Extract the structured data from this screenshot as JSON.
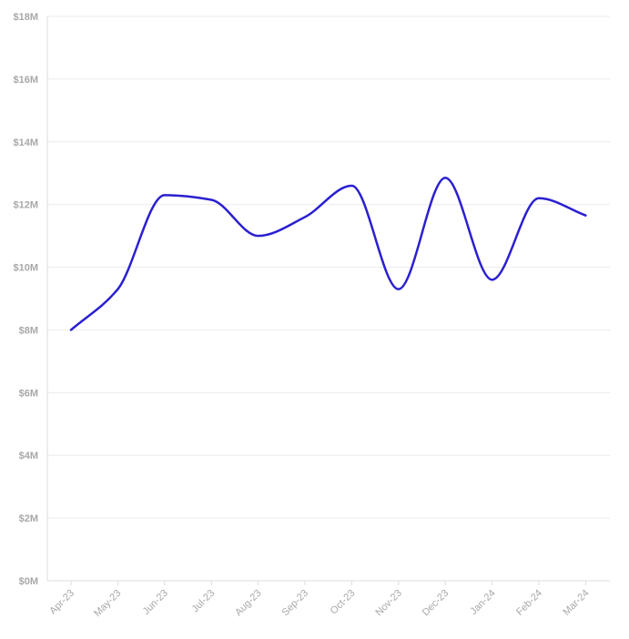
{
  "chart_data": {
    "type": "line",
    "title": "",
    "xlabel": "",
    "ylabel": "",
    "categories": [
      "Apr-23",
      "May-23",
      "Jun-23",
      "Jul-23",
      "Aug-23",
      "Sep-23",
      "Oct-23",
      "Nov-23",
      "Dec-23",
      "Jan-24",
      "Feb-24",
      "Mar-24"
    ],
    "series": [
      {
        "values": [
          8.0,
          9.3,
          12.3,
          12.15,
          11.0,
          11.6,
          12.6,
          9.3,
          12.85,
          9.6,
          12.2,
          11.65
        ],
        "color": "#2a1fd0"
      }
    ],
    "y_unit_prefix": "$",
    "y_unit_suffix": "M",
    "ylim": [
      0,
      18
    ],
    "y_ticks": [
      0,
      2,
      4,
      6,
      8,
      10,
      12,
      14,
      16,
      18
    ],
    "y_tick_labels": [
      "$0M",
      "$2M",
      "$4M",
      "$6M",
      "$8M",
      "$10M",
      "$12M",
      "$14M",
      "$16M",
      "$18M"
    ],
    "grid": true,
    "grid_color": "#ebebeb",
    "axis_color": "#dcdcdc",
    "tick_label_color": "#a8a8a8",
    "legend": "none",
    "smooth": true
  }
}
